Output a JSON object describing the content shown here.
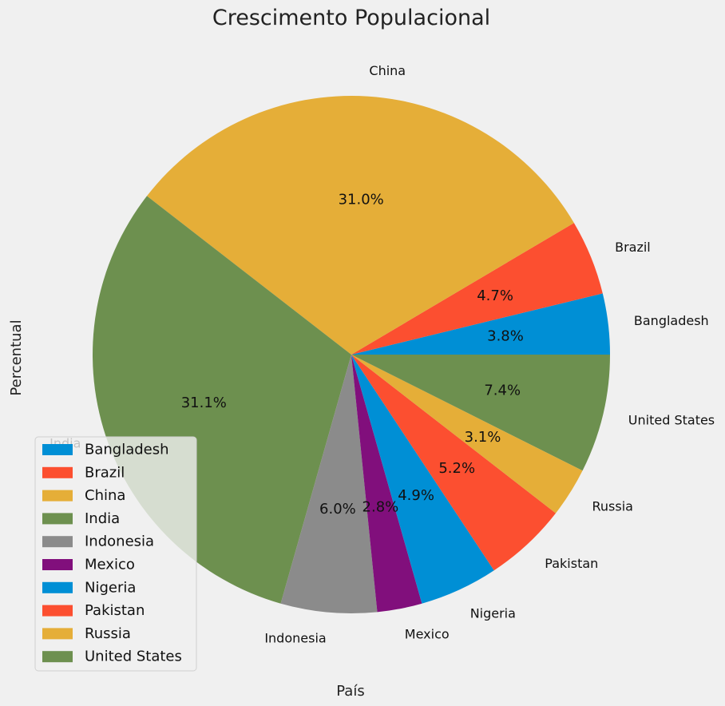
{
  "chart_data": {
    "type": "pie",
    "title": "Crescimento Populacional",
    "xlabel": "País",
    "ylabel": "Percentual",
    "categories": [
      "Bangladesh",
      "Brazil",
      "China",
      "India",
      "Indonesia",
      "Mexico",
      "Nigeria",
      "Pakistan",
      "Russia",
      "United States"
    ],
    "values": [
      3.8,
      4.7,
      31.0,
      31.1,
      6.0,
      2.8,
      4.9,
      5.2,
      3.1,
      7.4
    ],
    "percent_labels": [
      "3.8%",
      "4.7%",
      "31.0%",
      "31.1%",
      "6.0%",
      "2.8%",
      "4.9%",
      "5.2%",
      "3.1%",
      "7.4%"
    ],
    "colors": [
      "#008fd5",
      "#fc4f30",
      "#e5ae38",
      "#6d904f",
      "#8b8b8b",
      "#810f7c",
      "#008fd5",
      "#fc4f30",
      "#e5ae38",
      "#6d904f"
    ],
    "start_angle_deg": 0,
    "direction": "counterclockwise",
    "legend": {
      "position": "lower-left",
      "entries": [
        "Bangladesh",
        "Brazil",
        "China",
        "India",
        "Indonesia",
        "Mexico",
        "Nigeria",
        "Pakistan",
        "Russia",
        "United States"
      ]
    },
    "background": "#f0f0f0"
  }
}
